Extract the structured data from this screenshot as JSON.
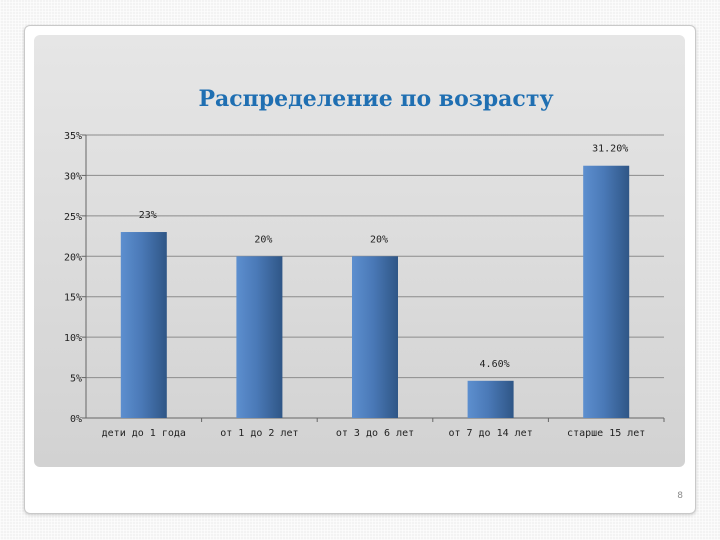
{
  "slide": {
    "page_number": "8"
  },
  "colors": {
    "bar_fill": "#4a79b7",
    "title": "#1f6fb2",
    "grid": "#8c8c8c"
  },
  "chart_data": {
    "type": "bar",
    "title": "Распределение по возрасту",
    "categories": [
      "дети до 1 года",
      "от 1 до 2 лет",
      "от 3 до 6 лет",
      "от 7 до 14 лет",
      "старше 15 лет"
    ],
    "values": [
      23,
      20,
      20,
      4.6,
      31.2
    ],
    "data_labels": [
      "23%",
      "20%",
      "20%",
      "4.60%",
      "31.20%"
    ],
    "y_ticks": [
      "0%",
      "5%",
      "10%",
      "15%",
      "20%",
      "25%",
      "30%",
      "35%"
    ],
    "ylim": [
      0,
      35
    ],
    "grid": true,
    "legend": false,
    "xlabel": "",
    "ylabel": ""
  }
}
